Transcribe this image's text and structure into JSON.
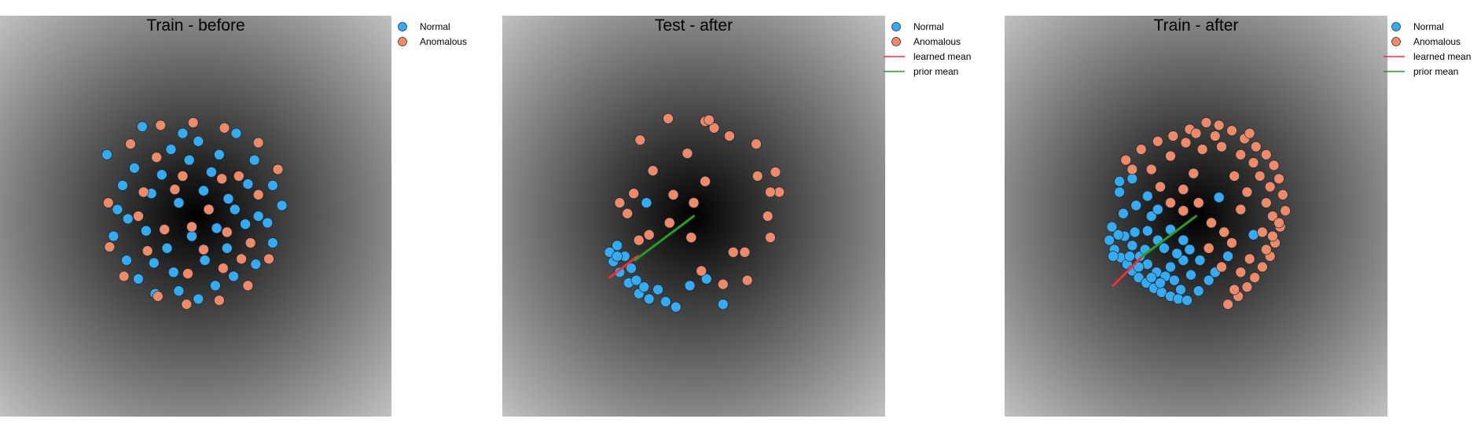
{
  "figure": {
    "marker_colors": {
      "Normal": "#38aaf0",
      "Anomalous": "#ec8a6a",
      "learned mean": "#e8313c",
      "prior mean": "#2a9a2a"
    },
    "background": "radial gray gradient, black at center",
    "legend_placement": "right of each panel"
  },
  "chart_data": [
    {
      "type": "scatter",
      "title": "Train - before",
      "xlim": [
        -1.5,
        1.5
      ],
      "ylim": [
        -1.5,
        1.5
      ],
      "grid": false,
      "axes_visible": false,
      "legend": [
        "Normal",
        "Anomalous"
      ],
      "series": [
        {
          "name": "Normal",
          "points": [
            [
              -0.68,
              0.46
            ],
            [
              -0.56,
              0.23
            ],
            [
              -0.41,
              0.67
            ],
            [
              -0.19,
              0.5
            ],
            [
              -0.1,
              0.62
            ],
            [
              0.02,
              0.56
            ],
            [
              0.18,
              0.46
            ],
            [
              0.31,
              0.62
            ],
            [
              0.45,
              0.42
            ],
            [
              0.59,
              0.23
            ],
            [
              0.66,
              0.08
            ],
            [
              0.48,
              0.0
            ],
            [
              0.25,
              0.13
            ],
            [
              0.06,
              0.19
            ],
            [
              -0.13,
              0.1
            ],
            [
              -0.34,
              0.17
            ],
            [
              -0.52,
              -0.02
            ],
            [
              -0.63,
              -0.15
            ],
            [
              -0.53,
              -0.33
            ],
            [
              -0.44,
              -0.47
            ],
            [
              -0.31,
              -0.58
            ],
            [
              -0.13,
              -0.56
            ],
            [
              0.02,
              -0.62
            ],
            [
              0.15,
              -0.52
            ],
            [
              0.29,
              -0.45
            ],
            [
              0.46,
              -0.36
            ],
            [
              0.59,
              -0.2
            ],
            [
              0.38,
              -0.06
            ],
            [
              0.16,
              -0.09
            ],
            [
              -0.03,
              -0.15
            ],
            [
              -0.22,
              -0.24
            ],
            [
              -0.38,
              -0.11
            ],
            [
              -0.17,
              -0.42
            ],
            [
              0.07,
              -0.33
            ],
            [
              0.24,
              -0.24
            ],
            [
              -0.26,
              0.31
            ],
            [
              0.12,
              0.33
            ],
            [
              -0.47,
              0.36
            ],
            [
              0.4,
              0.24
            ],
            [
              -0.6,
              0.05
            ],
            [
              0.55,
              -0.05
            ],
            [
              -0.05,
              0.42
            ],
            [
              -0.32,
              -0.35
            ],
            [
              0.3,
              0.05
            ]
          ]
        },
        {
          "name": "Anomalous",
          "points": [
            [
              -0.5,
              0.54
            ],
            [
              -0.27,
              0.68
            ],
            [
              -0.02,
              0.7
            ],
            [
              0.22,
              0.66
            ],
            [
              0.48,
              0.55
            ],
            [
              0.63,
              0.35
            ],
            [
              0.56,
              -0.32
            ],
            [
              0.4,
              -0.52
            ],
            [
              0.18,
              -0.63
            ],
            [
              -0.07,
              -0.66
            ],
            [
              -0.29,
              -0.6
            ],
            [
              -0.55,
              -0.45
            ],
            [
              -0.66,
              -0.23
            ],
            [
              -0.67,
              0.1
            ],
            [
              -0.3,
              0.44
            ],
            [
              -0.1,
              0.3
            ],
            [
              0.1,
              0.05
            ],
            [
              0.33,
              0.3
            ],
            [
              0.48,
              0.16
            ],
            [
              0.24,
              -0.12
            ],
            [
              -0.03,
              -0.08
            ],
            [
              -0.24,
              -0.1
            ],
            [
              -0.44,
              0.0
            ],
            [
              -0.37,
              -0.26
            ],
            [
              -0.06,
              -0.43
            ],
            [
              0.21,
              -0.39
            ],
            [
              0.42,
              -0.2
            ],
            [
              0.2,
              0.28
            ],
            [
              -0.16,
              0.2
            ],
            [
              -0.4,
              0.18
            ],
            [
              0.06,
              -0.25
            ],
            [
              0.35,
              -0.32
            ]
          ]
        }
      ]
    },
    {
      "type": "scatter",
      "title": "Test - after",
      "xlim": [
        -1.5,
        1.5
      ],
      "ylim": [
        -1.5,
        1.5
      ],
      "grid": false,
      "axes_visible": false,
      "legend": [
        "Normal",
        "Anomalous",
        "learned mean",
        "prior mean"
      ],
      "series": [
        {
          "name": "Normal",
          "points": [
            [
              -0.37,
              0.1
            ],
            [
              -0.6,
              -0.22
            ],
            [
              -0.66,
              -0.27
            ],
            [
              -0.63,
              -0.34
            ],
            [
              -0.58,
              -0.42
            ],
            [
              -0.51,
              -0.5
            ],
            [
              -0.43,
              -0.58
            ],
            [
              -0.35,
              -0.62
            ],
            [
              -0.28,
              -0.55
            ],
            [
              -0.49,
              -0.39
            ],
            [
              -0.54,
              -0.3
            ],
            [
              -0.45,
              -0.48
            ],
            [
              -0.22,
              -0.64
            ],
            [
              -0.14,
              -0.68
            ],
            [
              -0.03,
              -0.52
            ],
            [
              0.1,
              -0.47
            ],
            [
              0.23,
              -0.66
            ],
            [
              -0.6,
              -0.3
            ],
            [
              -0.39,
              -0.53
            ]
          ]
        },
        {
          "name": "Anomalous",
          "points": [
            [
              -0.2,
              0.73
            ],
            [
              0.09,
              0.71
            ],
            [
              0.16,
              0.66
            ],
            [
              0.28,
              0.6
            ],
            [
              0.49,
              0.54
            ],
            [
              0.64,
              0.33
            ],
            [
              0.67,
              0.18
            ],
            [
              0.58,
              0.0
            ],
            [
              0.6,
              -0.16
            ],
            [
              0.31,
              -0.27
            ],
            [
              0.4,
              -0.27
            ],
            [
              0.42,
              -0.48
            ],
            [
              0.23,
              -0.51
            ],
            [
              0.06,
              -0.41
            ],
            [
              -0.02,
              -0.16
            ],
            [
              0.0,
              0.1
            ],
            [
              -0.16,
              0.16
            ],
            [
              -0.32,
              0.34
            ],
            [
              -0.47,
              0.17
            ],
            [
              -0.58,
              0.1
            ],
            [
              -0.52,
              0.02
            ],
            [
              -0.43,
              -0.18
            ],
            [
              -0.35,
              -0.14
            ],
            [
              -0.19,
              -0.05
            ],
            [
              0.09,
              0.26
            ],
            [
              0.5,
              0.3
            ],
            [
              0.6,
              0.18
            ],
            [
              -0.42,
              0.57
            ],
            [
              0.12,
              0.72
            ],
            [
              -0.05,
              0.47
            ]
          ]
        }
      ],
      "lines": [
        {
          "name": "learned mean",
          "from": [
            -0.66,
            -0.46
          ],
          "to": [
            -0.44,
            -0.3
          ]
        },
        {
          "name": "prior mean",
          "from": [
            -0.46,
            -0.33
          ],
          "to": [
            0.0,
            0.0
          ]
        }
      ]
    },
    {
      "type": "scatter",
      "title": "Train - after",
      "xlim": [
        -1.5,
        1.5
      ],
      "ylim": [
        -1.5,
        1.5
      ],
      "grid": false,
      "axes_visible": false,
      "legend": [
        "Normal",
        "Anomalous",
        "learned mean",
        "prior mean"
      ],
      "series": [
        {
          "name": "Normal",
          "points": [
            [
              -0.6,
              0.26
            ],
            [
              -0.5,
              0.28
            ],
            [
              -0.47,
              0.08
            ],
            [
              -0.35,
              0.0
            ],
            [
              -0.38,
              -0.11
            ],
            [
              -0.57,
              0.02
            ],
            [
              -0.66,
              -0.08
            ],
            [
              -0.68,
              -0.18
            ],
            [
              -0.64,
              -0.25
            ],
            [
              -0.59,
              -0.31
            ],
            [
              -0.54,
              -0.36
            ],
            [
              -0.5,
              -0.41
            ],
            [
              -0.45,
              -0.46
            ],
            [
              -0.39,
              -0.5
            ],
            [
              -0.33,
              -0.54
            ],
            [
              -0.27,
              -0.57
            ],
            [
              -0.2,
              -0.6
            ],
            [
              -0.14,
              -0.62
            ],
            [
              -0.07,
              -0.63
            ],
            [
              -0.56,
              -0.15
            ],
            [
              -0.5,
              -0.22
            ],
            [
              -0.44,
              -0.3
            ],
            [
              -0.38,
              -0.36
            ],
            [
              -0.31,
              -0.42
            ],
            [
              -0.24,
              -0.45
            ],
            [
              -0.17,
              -0.48
            ],
            [
              -0.61,
              -0.14
            ],
            [
              -0.52,
              -0.3
            ],
            [
              -0.45,
              -0.38
            ],
            [
              -0.35,
              -0.46
            ],
            [
              -0.28,
              -0.5
            ],
            [
              -0.12,
              -0.55
            ],
            [
              -0.25,
              -0.24
            ],
            [
              -0.3,
              -0.18
            ],
            [
              -0.2,
              -0.1
            ],
            [
              -0.1,
              -0.18
            ],
            [
              -0.1,
              -0.33
            ],
            [
              -0.04,
              -0.44
            ],
            [
              0.02,
              -0.56
            ],
            [
              0.03,
              -0.33
            ],
            [
              0.15,
              -0.42
            ],
            [
              0.18,
              0.14
            ],
            [
              0.45,
              -0.14
            ],
            [
              -0.6,
              0.18
            ],
            [
              -0.4,
              -0.25
            ],
            [
              -0.3,
              0.05
            ],
            [
              -0.15,
              -0.28
            ],
            [
              -0.05,
              -0.25
            ],
            [
              -0.48,
              -0.12
            ],
            [
              -0.65,
              -0.3
            ],
            [
              -0.2,
              -0.38
            ],
            [
              0.1,
              -0.48
            ],
            [
              0.25,
              -0.3
            ],
            [
              -0.38,
              0.15
            ]
          ]
        },
        {
          "name": "Anomalous",
          "points": [
            [
              -0.43,
              0.5
            ],
            [
              -0.3,
              0.56
            ],
            [
              -0.18,
              0.6
            ],
            [
              -0.05,
              0.65
            ],
            [
              0.08,
              0.7
            ],
            [
              0.18,
              0.68
            ],
            [
              0.28,
              0.64
            ],
            [
              0.38,
              0.58
            ],
            [
              0.47,
              0.52
            ],
            [
              0.55,
              0.46
            ],
            [
              0.61,
              0.38
            ],
            [
              0.65,
              0.28
            ],
            [
              0.68,
              0.16
            ],
            [
              0.7,
              0.04
            ],
            [
              0.66,
              -0.08
            ],
            [
              0.62,
              -0.2
            ],
            [
              0.58,
              -0.3
            ],
            [
              0.52,
              -0.38
            ],
            [
              0.46,
              -0.46
            ],
            [
              0.4,
              -0.53
            ],
            [
              0.33,
              -0.6
            ],
            [
              0.25,
              -0.66
            ],
            [
              -0.08,
              0.55
            ],
            [
              0.05,
              0.5
            ],
            [
              0.2,
              0.52
            ],
            [
              0.35,
              0.46
            ],
            [
              0.5,
              0.3
            ],
            [
              0.55,
              0.1
            ],
            [
              0.52,
              -0.12
            ],
            [
              0.42,
              -0.32
            ],
            [
              -0.35,
              0.35
            ],
            [
              -0.28,
              0.22
            ],
            [
              -0.2,
              0.1
            ],
            [
              -0.1,
              0.04
            ],
            [
              0.02,
              0.1
            ],
            [
              -0.02,
              0.32
            ],
            [
              0.12,
              -0.05
            ],
            [
              0.22,
              -0.12
            ],
            [
              0.35,
              0.05
            ],
            [
              0.4,
              0.18
            ],
            [
              0.1,
              -0.24
            ],
            [
              0.28,
              -0.2
            ],
            [
              0.2,
              -0.38
            ],
            [
              0.35,
              -0.42
            ],
            [
              0.6,
              0.0
            ],
            [
              0.6,
              -0.15
            ],
            [
              -0.55,
              0.42
            ],
            [
              -0.2,
              0.45
            ],
            [
              0.3,
              0.3
            ],
            [
              0.45,
              0.4
            ],
            [
              0.58,
              0.22
            ],
            [
              0.0,
              0.62
            ],
            [
              0.15,
              0.6
            ],
            [
              -0.5,
              0.35
            ],
            [
              0.55,
              -0.25
            ],
            [
              0.3,
              -0.55
            ],
            [
              0.65,
              -0.05
            ],
            [
              0.42,
              0.62
            ],
            [
              -0.1,
              0.2
            ]
          ]
        }
      ],
      "lines": [
        {
          "name": "learned mean",
          "from": [
            -0.65,
            -0.52
          ],
          "to": [
            -0.42,
            -0.3
          ]
        },
        {
          "name": "prior mean",
          "from": [
            -0.42,
            -0.3
          ],
          "to": [
            0.0,
            0.0
          ]
        }
      ]
    }
  ]
}
